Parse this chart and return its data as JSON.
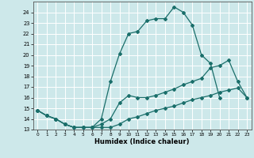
{
  "xlabel": "Humidex (Indice chaleur)",
  "xlim": [
    -0.5,
    23.5
  ],
  "ylim": [
    13,
    25
  ],
  "yticks": [
    13,
    14,
    15,
    16,
    17,
    18,
    19,
    20,
    21,
    22,
    23,
    24
  ],
  "xticks": [
    0,
    1,
    2,
    3,
    4,
    5,
    6,
    7,
    8,
    9,
    10,
    11,
    12,
    13,
    14,
    15,
    16,
    17,
    18,
    19,
    20,
    21,
    22,
    23
  ],
  "bg_color": "#cde8ea",
  "grid_color": "#ffffff",
  "line_color": "#1a6e6a",
  "line1_x": [
    0,
    1,
    2,
    3,
    4,
    5,
    6,
    7,
    8,
    9,
    10,
    11,
    12,
    13,
    14,
    15,
    16,
    17,
    18,
    19,
    20
  ],
  "line1_y": [
    14.8,
    14.3,
    14.0,
    13.5,
    13.2,
    13.2,
    13.2,
    14.0,
    17.5,
    20.1,
    22.0,
    22.2,
    23.2,
    23.4,
    23.4,
    24.5,
    24.0,
    22.8,
    20.0,
    19.2,
    16.0
  ],
  "line2_x": [
    0,
    1,
    2,
    3,
    4,
    5,
    6,
    7,
    8,
    9,
    10,
    11,
    12,
    13,
    14,
    15,
    16,
    17,
    18,
    19,
    20,
    21,
    22,
    23
  ],
  "line2_y": [
    14.8,
    14.3,
    14.0,
    13.5,
    13.2,
    13.2,
    13.2,
    13.5,
    14.0,
    15.5,
    16.2,
    16.0,
    16.0,
    16.2,
    16.5,
    16.8,
    17.2,
    17.5,
    17.8,
    18.8,
    19.0,
    19.5,
    17.5,
    16.0
  ],
  "line3_x": [
    0,
    1,
    2,
    3,
    4,
    5,
    6,
    7,
    8,
    9,
    10,
    11,
    12,
    13,
    14,
    15,
    16,
    17,
    18,
    19,
    20,
    21,
    22,
    23
  ],
  "line3_y": [
    14.8,
    14.3,
    14.0,
    13.5,
    13.2,
    13.2,
    13.2,
    13.2,
    13.2,
    13.5,
    14.0,
    14.2,
    14.5,
    14.8,
    15.0,
    15.2,
    15.5,
    15.8,
    16.0,
    16.2,
    16.5,
    16.7,
    16.9,
    16.0
  ]
}
